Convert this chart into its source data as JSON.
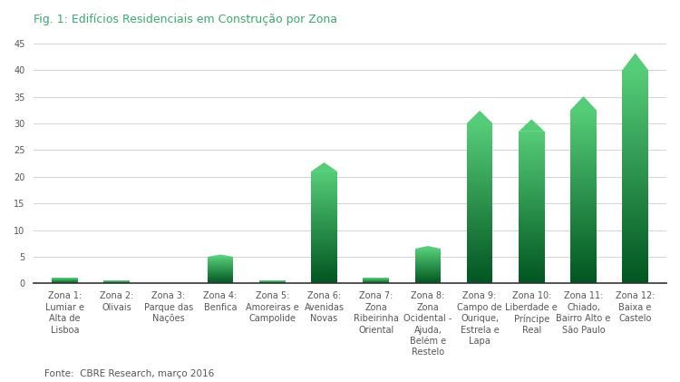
{
  "title": "Fig. 1: Edifícios Residenciais em Construção por Zona",
  "title_color": "#3aaa6e",
  "categories": [
    "Zona 1:\nLumiar e\nAlta de\nLisboa",
    "Zona 2:\nOlivais",
    "Zona 3:\nParque das\nNações",
    "Zona 4:\nBenfica",
    "Zona 5:\nAmoreiras e\nCampolide",
    "Zona 6:\nAvenidas\nNovas",
    "Zona 7:\nZona\nRibeirinha\nOriental",
    "Zona 8:\nZona\nOcidental -\nAjuda,\nBelém e\nRestelo",
    "Zona 9:\nCampo de\nOurique,\nEstrela e\nLapa",
    "Zona 10:\nLiberdade e\nPríncipe\nReal",
    "Zona 11:\nChiado,\nBairro Alto e\nSão Paulo",
    "Zona 12:\nBaixa e\nCastelo"
  ],
  "values": [
    1,
    0.5,
    0,
    5,
    0.5,
    21,
    1,
    6.5,
    30,
    28.5,
    32.5,
    40
  ],
  "color_top": "#55cc77",
  "color_bottom": "#005520",
  "yticks": [
    0,
    5,
    10,
    15,
    20,
    25,
    30,
    35,
    40,
    45
  ],
  "ylim": [
    0,
    47
  ],
  "footer": "Fonte:  CBRE Research, março 2016",
  "background_color": "#ffffff",
  "grid_color": "#cccccc",
  "tick_label_color": "#555555",
  "tick_label_fontsize": 7.0,
  "bar_width": 0.5,
  "triangle_ratio": 0.08
}
